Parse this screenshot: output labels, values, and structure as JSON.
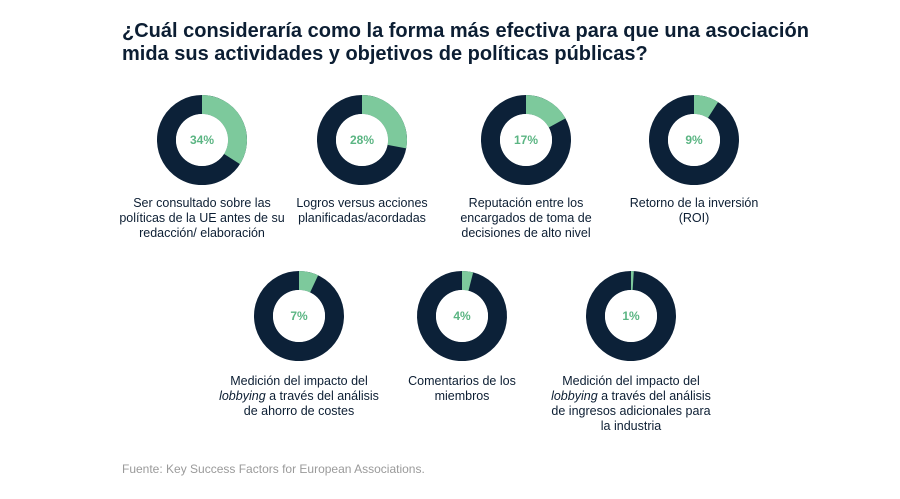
{
  "chart_data": {
    "type": "pie",
    "title": "¿Cuál consideraría como la forma más efectiva para que una asociación mida sus actividades y objetivos de políticas públicas?",
    "source": "Fuente: Key Success Factors for European Associations.",
    "colors": {
      "value": "#7dc99c",
      "remainder": "#0c2138",
      "label": "#5bb583"
    },
    "items": [
      {
        "value": 34,
        "pct_label": "34%",
        "label_parts": [
          "Ser consultado sobre las políticas de la UE antes de su redacción/ elaboración"
        ]
      },
      {
        "value": 28,
        "pct_label": "28%",
        "label_parts": [
          "Logros versus acciones planificadas/acordadas"
        ]
      },
      {
        "value": 17,
        "pct_label": "17%",
        "label_parts": [
          "Reputación entre los encargados de toma de decisiones de alto nivel"
        ]
      },
      {
        "value": 9,
        "pct_label": "9%",
        "label_parts": [
          "Retorno de la inversión (ROI)"
        ]
      },
      {
        "value": 7,
        "pct_label": "7%",
        "label_parts": [
          "Medición del impacto del ",
          "lobbying",
          " a través del análisis de ahorro de costes"
        ]
      },
      {
        "value": 4,
        "pct_label": "4%",
        "label_parts": [
          "Comentarios de los miembros"
        ]
      },
      {
        "value": 1,
        "pct_label": "1%",
        "label_parts": [
          "Medición del impacto del ",
          "lobbying",
          " a través del análisis de ingresos adicionales para la industria"
        ]
      }
    ]
  }
}
